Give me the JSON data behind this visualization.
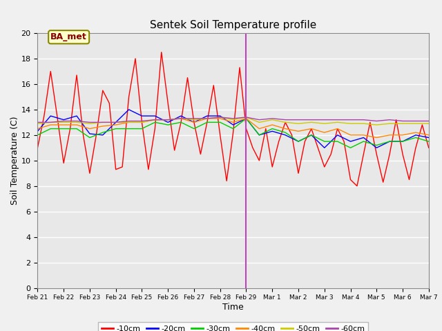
{
  "title": "Sentek Soil Temperature profile",
  "xlabel": "Time",
  "ylabel": "Soil Temperature (C)",
  "ylim": [
    0,
    20
  ],
  "vline_x": 8.0,
  "vline_color": "#bb44bb",
  "annotation_label": "BA_met",
  "legend_items": [
    "-10cm",
    "-20cm",
    "-30cm",
    "-40cm",
    "-50cm",
    "-60cm"
  ],
  "legend_colors": [
    "#ff0000",
    "#0000ff",
    "#00cc00",
    "#ff8800",
    "#cccc00",
    "#aa44aa"
  ],
  "x_tick_labels": [
    "Feb 21",
    "Feb 22",
    "Feb 23",
    "Feb 24",
    "Feb 25",
    "Feb 26",
    "Feb 27",
    "Feb 28",
    "Feb 29",
    "Mar 1",
    "Mar 2",
    "Mar 3",
    "Mar 4",
    "Mar 5",
    "Mar 6",
    "Mar 7"
  ],
  "series": {
    "-10cm": {
      "color": "#ff0000",
      "x": [
        0.0,
        0.25,
        0.5,
        0.75,
        1.0,
        1.25,
        1.5,
        1.75,
        2.0,
        2.25,
        2.5,
        2.75,
        3.0,
        3.25,
        3.5,
        3.75,
        4.0,
        4.25,
        4.5,
        4.75,
        5.0,
        5.25,
        5.5,
        5.75,
        6.0,
        6.25,
        6.5,
        6.75,
        7.0,
        7.25,
        7.5,
        7.75,
        8.0,
        8.25,
        8.5,
        8.75,
        9.0,
        9.25,
        9.5,
        9.75,
        10.0,
        10.25,
        10.5,
        10.75,
        11.0,
        11.25,
        11.5,
        11.75,
        12.0,
        12.25,
        12.5,
        12.75,
        13.0,
        13.25,
        13.5,
        13.75,
        14.0,
        14.25,
        14.5,
        14.75,
        15.0
      ],
      "y": [
        11.0,
        13.5,
        17.0,
        13.5,
        9.8,
        12.5,
        16.7,
        12.0,
        9.0,
        12.0,
        15.5,
        14.5,
        9.3,
        9.5,
        15.0,
        18.0,
        13.0,
        9.3,
        12.5,
        18.5,
        14.5,
        10.8,
        13.0,
        16.5,
        13.0,
        10.5,
        13.0,
        15.9,
        12.0,
        8.4,
        12.2,
        17.3,
        12.5,
        11.0,
        10.0,
        12.5,
        9.5,
        11.5,
        13.0,
        12.0,
        9.0,
        11.5,
        12.5,
        11.0,
        9.5,
        10.5,
        12.5,
        11.5,
        8.5,
        8.0,
        10.5,
        13.0,
        10.5,
        8.3,
        10.5,
        13.2,
        10.5,
        8.5,
        11.0,
        12.8,
        11.0
      ]
    },
    "-20cm": {
      "color": "#0000ff",
      "x": [
        0.0,
        0.5,
        1.0,
        1.5,
        2.0,
        2.5,
        3.0,
        3.5,
        4.0,
        4.5,
        5.0,
        5.5,
        6.0,
        6.5,
        7.0,
        7.5,
        8.0,
        8.5,
        9.0,
        9.5,
        10.0,
        10.5,
        11.0,
        11.5,
        12.0,
        12.5,
        13.0,
        13.5,
        14.0,
        14.5,
        15.0
      ],
      "y": [
        12.3,
        13.5,
        13.2,
        13.5,
        12.1,
        12.0,
        13.0,
        14.0,
        13.5,
        13.5,
        13.0,
        13.5,
        13.0,
        13.5,
        13.5,
        12.8,
        13.3,
        12.0,
        12.3,
        12.0,
        11.5,
        12.0,
        11.0,
        12.0,
        11.5,
        11.8,
        11.0,
        11.5,
        11.5,
        12.0,
        11.8
      ]
    },
    "-30cm": {
      "color": "#00cc00",
      "x": [
        0.0,
        0.5,
        1.0,
        1.5,
        2.0,
        2.5,
        3.0,
        3.5,
        4.0,
        4.5,
        5.0,
        5.5,
        6.0,
        6.5,
        7.0,
        7.5,
        8.0,
        8.5,
        9.0,
        9.5,
        10.0,
        10.5,
        11.0,
        11.5,
        12.0,
        12.5,
        13.0,
        13.5,
        14.0,
        14.5,
        15.0
      ],
      "y": [
        12.0,
        12.5,
        12.5,
        12.5,
        11.8,
        12.2,
        12.5,
        12.5,
        12.5,
        13.0,
        12.8,
        13.0,
        12.5,
        13.0,
        13.0,
        12.5,
        13.3,
        12.0,
        12.5,
        12.2,
        11.5,
        12.0,
        11.5,
        11.5,
        11.0,
        11.5,
        11.2,
        11.5,
        11.5,
        11.8,
        11.5
      ]
    },
    "-40cm": {
      "color": "#ff8800",
      "x": [
        0.0,
        0.5,
        1.0,
        1.5,
        2.0,
        2.5,
        3.0,
        3.5,
        4.0,
        4.5,
        5.0,
        5.5,
        6.0,
        6.5,
        7.0,
        7.5,
        8.0,
        8.5,
        9.0,
        9.5,
        10.0,
        10.5,
        11.0,
        11.5,
        12.0,
        12.5,
        13.0,
        13.5,
        14.0,
        14.5,
        15.0
      ],
      "y": [
        12.5,
        12.8,
        12.8,
        12.8,
        12.5,
        12.7,
        12.8,
        13.0,
        13.0,
        13.2,
        13.2,
        13.3,
        13.0,
        13.3,
        13.3,
        13.0,
        13.3,
        12.5,
        12.8,
        12.5,
        12.3,
        12.5,
        12.2,
        12.5,
        12.0,
        12.0,
        11.8,
        12.0,
        12.0,
        12.2,
        12.0
      ]
    },
    "-50cm": {
      "color": "#cccc00",
      "x": [
        0.0,
        0.5,
        1.0,
        1.5,
        2.0,
        2.5,
        3.0,
        3.5,
        4.0,
        4.5,
        5.0,
        5.5,
        6.0,
        6.5,
        7.0,
        7.5,
        8.0,
        8.5,
        9.0,
        9.5,
        10.0,
        10.5,
        11.0,
        11.5,
        12.0,
        12.5,
        13.0,
        13.5,
        14.0,
        14.5,
        15.0
      ],
      "y": [
        12.9,
        13.0,
        13.0,
        13.0,
        12.9,
        13.0,
        13.0,
        13.0,
        13.0,
        13.2,
        13.2,
        13.3,
        13.2,
        13.3,
        13.4,
        13.2,
        13.4,
        13.0,
        13.2,
        13.0,
        12.9,
        13.0,
        12.9,
        13.0,
        12.9,
        12.9,
        12.8,
        12.9,
        12.9,
        12.9,
        12.9
      ]
    },
    "-60cm": {
      "color": "#aa44aa",
      "x": [
        0.0,
        0.5,
        1.0,
        1.5,
        2.0,
        2.5,
        3.0,
        3.5,
        4.0,
        4.5,
        5.0,
        5.5,
        6.0,
        6.5,
        7.0,
        7.5,
        8.0,
        8.5,
        9.0,
        9.5,
        10.0,
        10.5,
        11.0,
        11.5,
        12.0,
        12.5,
        13.0,
        13.5,
        14.0,
        14.5,
        15.0
      ],
      "y": [
        13.0,
        13.0,
        13.1,
        13.1,
        13.0,
        13.0,
        13.0,
        13.1,
        13.1,
        13.2,
        13.2,
        13.3,
        13.3,
        13.3,
        13.4,
        13.3,
        13.4,
        13.2,
        13.3,
        13.2,
        13.2,
        13.2,
        13.2,
        13.2,
        13.2,
        13.2,
        13.1,
        13.2,
        13.1,
        13.1,
        13.1
      ]
    }
  }
}
